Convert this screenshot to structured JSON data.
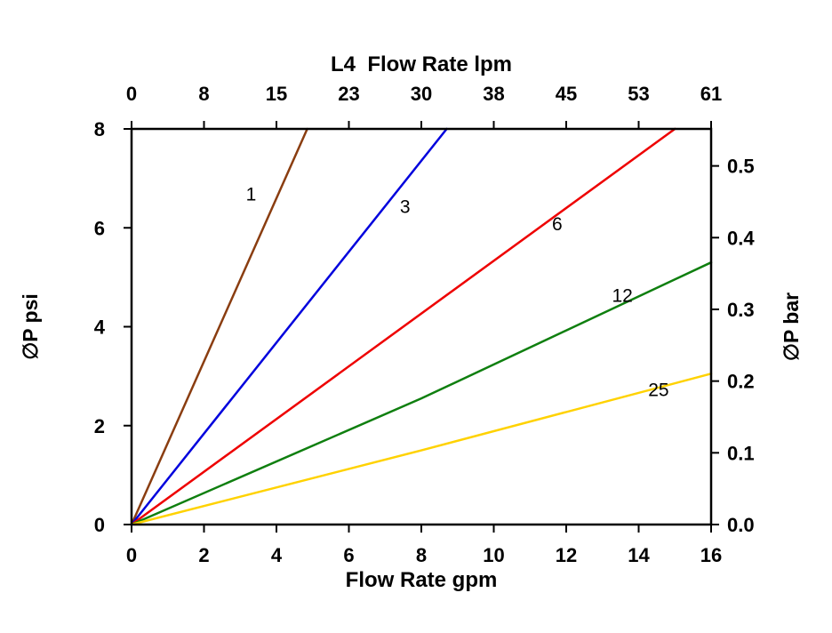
{
  "chart_data": {
    "type": "line",
    "title": "L4  Flow Rate lpm",
    "grid": false,
    "legend": "none (inline series labels)",
    "axes": {
      "bottom": {
        "label": "Flow Rate gpm",
        "min": 0,
        "max": 16,
        "ticks": [
          0,
          2,
          4,
          6,
          8,
          10,
          12,
          14,
          16
        ]
      },
      "top": {
        "label": "L4  Flow Rate lpm",
        "tick_positions_gpm": [
          0,
          2,
          4,
          6,
          8,
          10,
          12,
          14,
          16
        ],
        "tick_labels": [
          "0",
          "8",
          "15",
          "23",
          "30",
          "38",
          "45",
          "53",
          "61"
        ]
      },
      "left": {
        "label": "∅P psi",
        "min": 0,
        "max": 8,
        "ticks": [
          0,
          2,
          4,
          6,
          8
        ]
      },
      "right": {
        "label": "∅P bar",
        "bar_per_psi": 0.06895,
        "ticks": [
          {
            "v": 0.0,
            "label": "0.0"
          },
          {
            "v": 0.1,
            "label": "0.1"
          },
          {
            "v": 0.2,
            "label": "0.2"
          },
          {
            "v": 0.3,
            "label": "0.3"
          },
          {
            "v": 0.4,
            "label": "0.4"
          },
          {
            "v": 0.5,
            "label": "0.5"
          }
        ]
      }
    },
    "series": [
      {
        "name": "1",
        "color": "#8a3d10",
        "x": [
          0,
          4.85
        ],
        "y": [
          0,
          8
        ],
        "label_at": [
          3.3,
          6.55
        ]
      },
      {
        "name": "3",
        "color": "#0000dd",
        "x": [
          0,
          8.7
        ],
        "y": [
          0,
          8
        ],
        "label_at": [
          7.55,
          6.3
        ]
      },
      {
        "name": "6",
        "color": "#ee0000",
        "x": [
          0,
          15.0
        ],
        "y": [
          0,
          8
        ],
        "label_at": [
          11.75,
          5.95
        ]
      },
      {
        "name": "12",
        "color": "#0f7f0f",
        "x": [
          0,
          8,
          16
        ],
        "y": [
          0,
          2.55,
          5.3
        ],
        "label_at": [
          13.55,
          4.5
        ]
      },
      {
        "name": "25",
        "color": "#ffd200",
        "x": [
          0,
          8,
          16
        ],
        "y": [
          0,
          1.5,
          3.05
        ],
        "label_at": [
          14.55,
          2.6
        ]
      }
    ],
    "style": {
      "axis_color": "#000000",
      "text_color": "#000000",
      "background": "#ffffff"
    }
  }
}
